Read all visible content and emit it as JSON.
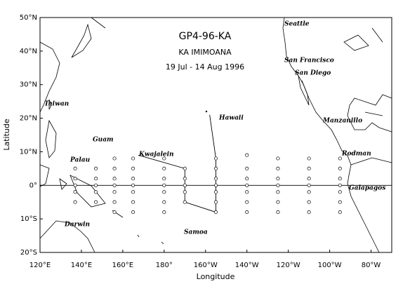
{
  "title": [
    "GP4-96-KA",
    "KA IMIMOANA",
    "19 Jul - 14 Aug 1996"
  ],
  "xlabel": "Longitude",
  "ylabel": "Latitude",
  "xlim": [
    120,
    290
  ],
  "ylim": [
    -20,
    50
  ],
  "xticks": [
    {
      "value": 120,
      "label": "120°E"
    },
    {
      "value": 140,
      "label": "140°E"
    },
    {
      "value": 160,
      "label": "160°E"
    },
    {
      "value": 180,
      "label": "180°"
    },
    {
      "value": 200,
      "label": "160°W"
    },
    {
      "value": 220,
      "label": "140°W"
    },
    {
      "value": 240,
      "label": "120°W"
    },
    {
      "value": 260,
      "label": "100°W"
    },
    {
      "value": 280,
      "label": "80°W"
    }
  ],
  "yticks": [
    {
      "value": -20,
      "label": "20°S"
    },
    {
      "value": -10,
      "label": "10°S"
    },
    {
      "value": 0,
      "label": "0°"
    },
    {
      "value": 10,
      "label": "10°N"
    },
    {
      "value": 20,
      "label": "20°N"
    },
    {
      "value": 30,
      "label": "30°N"
    },
    {
      "value": 40,
      "label": "40°N"
    },
    {
      "value": 50,
      "label": "50°N"
    }
  ],
  "places": [
    "Seattle",
    "San Francisco",
    "San Diego",
    "Manzanillo",
    "Rodman",
    "Galapagos",
    "Hawaii",
    "Kwajalein",
    "Guam",
    "Palau",
    "Taiwan",
    "Darwin",
    "Samoa"
  ],
  "stations": [
    {
      "lon": 137,
      "lat": [
        5,
        2,
        0,
        -2,
        -5
      ]
    },
    {
      "lon": 147,
      "lat": [
        5,
        2,
        0,
        -2,
        -5
      ]
    },
    {
      "lon": 156,
      "lat": [
        8,
        5,
        2,
        0,
        -2,
        -5,
        -8
      ]
    },
    {
      "lon": 165,
      "lat": [
        8,
        5,
        2,
        0,
        -2,
        -5,
        -8
      ]
    },
    {
      "lon": 180,
      "lat": [
        8,
        5,
        2,
        0,
        -2,
        -5,
        -8
      ]
    },
    {
      "lon": 190,
      "lat": [
        5,
        2,
        0,
        -2,
        -5
      ]
    },
    {
      "lon": 205,
      "lat": [
        8,
        5,
        2,
        0,
        -2,
        -5,
        -8
      ]
    },
    {
      "lon": 220,
      "lat": [
        9,
        5,
        2,
        0,
        -2,
        -5,
        -8
      ]
    },
    {
      "lon": 235,
      "lat": [
        8,
        5,
        2,
        0,
        -2,
        -5,
        -8
      ]
    },
    {
      "lon": 250,
      "lat": [
        8,
        5,
        2,
        0,
        -2,
        -5,
        -8
      ]
    },
    {
      "lon": 265,
      "lat": [
        8,
        5,
        2,
        0,
        -2,
        -5,
        -8
      ]
    }
  ],
  "track": {
    "lon": [
      167.5,
      190,
      190,
      205,
      205,
      202
    ],
    "lat": [
      9,
      5,
      -5,
      -8,
      8,
      21
    ]
  }
}
